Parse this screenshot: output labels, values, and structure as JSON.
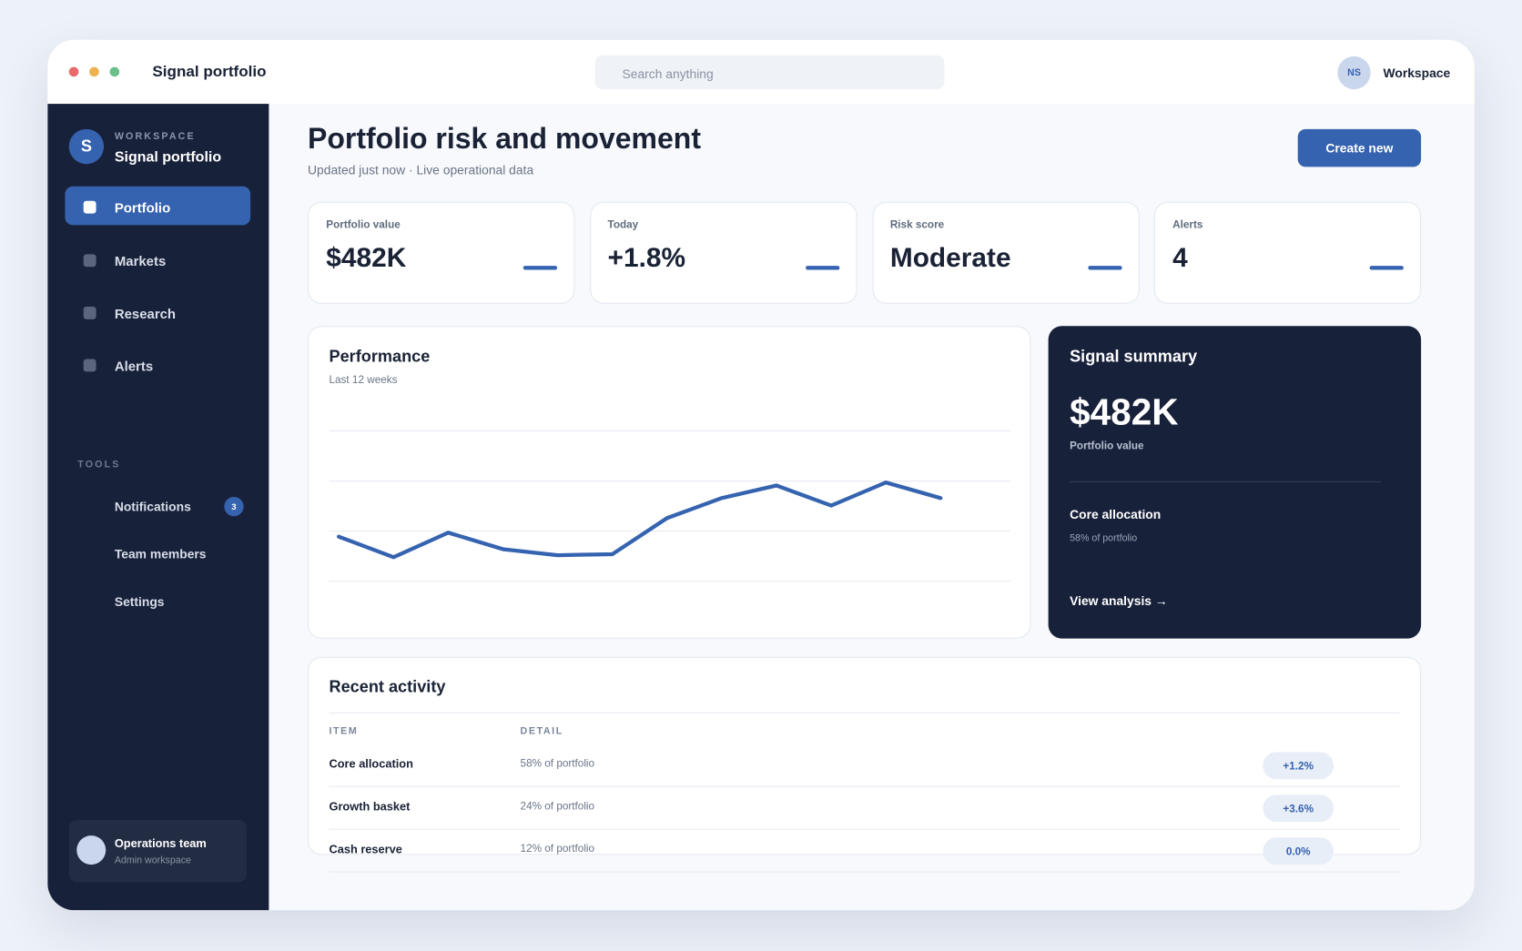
{
  "window": {
    "title": "Signal portfolio",
    "search_placeholder": "Search anything",
    "avatar": "NS",
    "workspace": "Workspace"
  },
  "sidebar": {
    "label": "WORKSPACE",
    "name": "Signal portfolio",
    "avatar": "S",
    "nav": [
      "Portfolio",
      "Markets",
      "Research",
      "Alerts"
    ],
    "tools_label": "TOOLS",
    "tools": [
      {
        "label": "Notifications",
        "badge": 3
      },
      {
        "label": "Team members"
      },
      {
        "label": "Settings"
      }
    ],
    "footer": {
      "name": "Operations team",
      "role": "Admin workspace"
    }
  },
  "header": {
    "title": "Portfolio risk and movement",
    "subtitle": "Updated just now · Live operational data",
    "button": "Create new"
  },
  "kpis": [
    {
      "label": "Portfolio value",
      "value": "$482K"
    },
    {
      "label": "Today",
      "value": "+1.8%"
    },
    {
      "label": "Risk score",
      "value": "Moderate"
    },
    {
      "label": "Alerts",
      "value": "4"
    }
  ],
  "performance": {
    "title": "Performance",
    "subtitle": "Last 12 weeks",
    "chart_data": {
      "type": "line",
      "values": [
        8.9,
        4.8,
        9.7,
        6.4,
        5.2,
        5.4,
        12.6,
        16.6,
        19.1,
        15.1,
        19.7,
        16.6
      ],
      "ylim": [
        0,
        30
      ],
      "yticks": [
        0,
        10,
        20,
        30
      ],
      "grid": true,
      "color": "#3563b0"
    }
  },
  "summary": {
    "title": "Signal summary",
    "value": "$482K",
    "value_label": "Portfolio value",
    "item": "Core allocation",
    "item_detail": "58% of portfolio",
    "link": "View analysis →"
  },
  "activity": {
    "title": "Recent activity",
    "columns": [
      "ITEM",
      "DETAIL"
    ],
    "rows": [
      [
        "Core allocation",
        "58% of portfolio",
        "+1.2%"
      ],
      [
        "Growth basket",
        "24% of portfolio",
        "+3.6%"
      ],
      [
        "Cash reserve",
        "12% of portfolio",
        "0.0%"
      ]
    ]
  }
}
